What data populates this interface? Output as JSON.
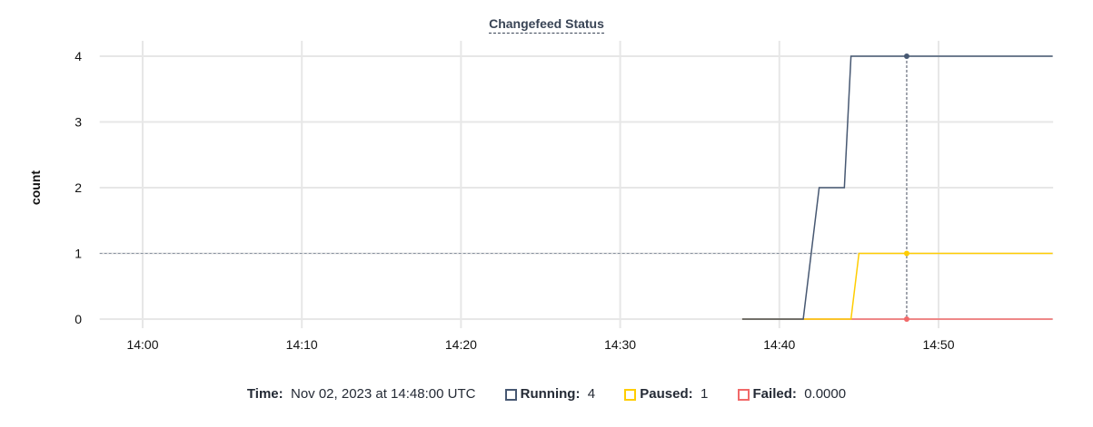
{
  "chart_data": {
    "type": "line",
    "title": "Changefeed Status",
    "ylabel": "count",
    "xlabel": "",
    "xlim": [
      "13:57:18",
      "14:57:12"
    ],
    "ylim": [
      0,
      4
    ],
    "x_ticks": [
      "14:00",
      "14:10",
      "14:20",
      "14:30",
      "14:40",
      "14:50"
    ],
    "y_ticks": [
      "0",
      "1",
      "2",
      "3",
      "4"
    ],
    "grid": true,
    "crosshair_time": "14:48:00",
    "reference_line_y": 1,
    "series": [
      {
        "name": "Running",
        "color": "#475872",
        "points": [
          [
            "14:37:40",
            0
          ],
          [
            "14:41:30",
            0
          ],
          [
            "14:42:30",
            2
          ],
          [
            "14:44:05",
            2
          ],
          [
            "14:44:30",
            4
          ],
          [
            "14:57:10",
            4
          ]
        ]
      },
      {
        "name": "Paused",
        "color": "#ffcd02",
        "points": [
          [
            "14:37:40",
            0
          ],
          [
            "14:44:30",
            0
          ],
          [
            "14:45:00",
            1
          ],
          [
            "14:57:10",
            1
          ]
        ]
      },
      {
        "name": "Failed",
        "color": "#f16969",
        "points": [
          [
            "14:37:40",
            0
          ],
          [
            "14:57:10",
            0
          ]
        ]
      }
    ]
  },
  "legend": {
    "time_label": "Time:",
    "time_value": "Nov 02, 2023 at 14:48:00 UTC",
    "items": [
      {
        "label": "Running:",
        "value": "4",
        "color": "#475872"
      },
      {
        "label": "Paused:",
        "value": "1",
        "color": "#ffcd02"
      },
      {
        "label": "Failed:",
        "value": "0.0000",
        "color": "#f16969"
      }
    ]
  }
}
